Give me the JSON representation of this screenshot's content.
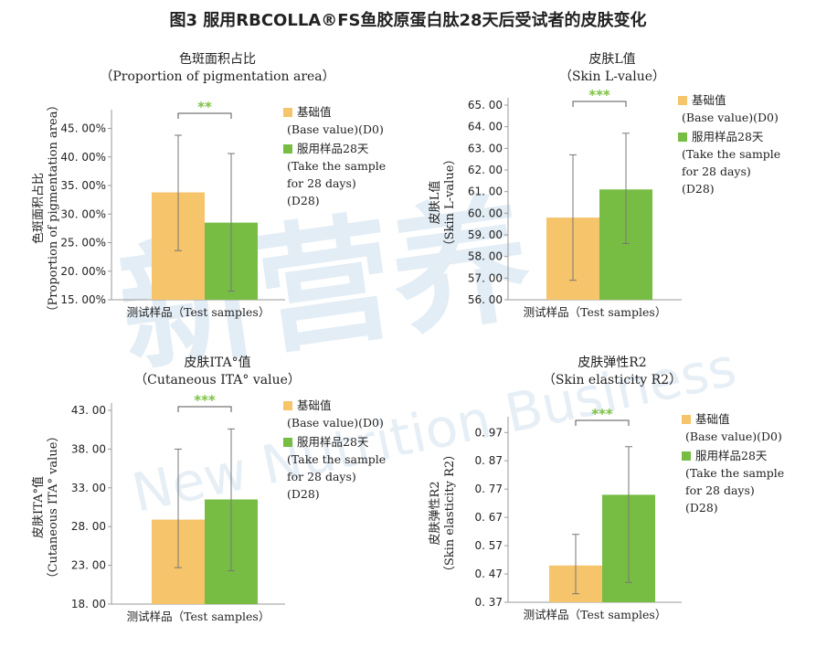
{
  "title": "图3 服用RBCOLLA®FS鱼胶原蛋白肽28天后受试者的皮肤变化",
  "watermark": {
    "cn": "新营养",
    "en": "New Nutrition Business",
    "color": "#dfeaf3"
  },
  "colors": {
    "base": "#f5c46b",
    "d28": "#77bd43",
    "err": "#777777",
    "sig": "#7cc242"
  },
  "chart_data": [
    {
      "type": "bar",
      "title": "色斑面积占比",
      "subtitle": "（Proportion of pigmentation area）",
      "ylabel_cn": "色斑面积占比",
      "ylabel_en": "（Proportion of pigmentation area）",
      "xlabel": "测试样品（Test samples）",
      "ylim": [
        15,
        47
      ],
      "ticks": [
        15,
        20,
        25,
        30,
        35,
        40,
        45
      ],
      "tick_labels": [
        "15. 00%",
        "20. 00%",
        "25. 00%",
        "30. 00%",
        "35. 00%",
        "40. 00%",
        "45. 00%"
      ],
      "series": [
        {
          "name": "基础值 (Base value)(D0)",
          "value": 33.8,
          "err_low": 23.6,
          "err_high": 43.8
        },
        {
          "name": "服用样品28天 (Take the sample for 28 days)(D28)",
          "value": 28.5,
          "err_low": 16.5,
          "err_high": 40.6
        }
      ],
      "significance": "**",
      "legend": [
        {
          "lines": [
            "基础值",
            "(Base value)(D0)"
          ]
        },
        {
          "lines": [
            "服用样品28天",
            "(Take the sample",
            "for 28 days)",
            "(D28)"
          ]
        }
      ]
    },
    {
      "type": "bar",
      "title": "皮肤L值",
      "subtitle": "（Skin L-value）",
      "ylabel_cn": "皮肤L值",
      "ylabel_en": "（Skin L-value）",
      "xlabel": "测试样品（Test samples）",
      "ylim": [
        56,
        65
      ],
      "ticks": [
        56,
        57,
        58,
        59,
        60,
        61,
        62,
        63,
        64,
        65
      ],
      "tick_labels": [
        "56. 00",
        "57. 00",
        "58. 00",
        "59. 00",
        "60. 00",
        "61. 00",
        "62. 00",
        "63. 00",
        "64. 00",
        "65. 00"
      ],
      "series": [
        {
          "name": "基础值 (Base value)(D0)",
          "value": 59.8,
          "err_low": 56.9,
          "err_high": 62.7
        },
        {
          "name": "服用样品28天 (Take the sample for 28 days)(D28)",
          "value": 61.1,
          "err_low": 58.6,
          "err_high": 63.7
        }
      ],
      "significance": "***",
      "legend": [
        {
          "lines": [
            "基础值",
            "(Base value)(D0)"
          ]
        },
        {
          "lines": [
            "服用样品28天",
            "(Take the sample",
            "for 28 days)",
            "(D28)"
          ]
        }
      ]
    },
    {
      "type": "bar",
      "title": "皮肤ITA°值",
      "subtitle": "（Cutaneous ITA° value）",
      "ylabel_cn": "皮肤ITA°值",
      "ylabel_en": "（Cutaneous ITA° value）",
      "xlabel": "测试样品（Test samples）",
      "ylim": [
        18,
        43
      ],
      "ticks": [
        18,
        23,
        28,
        33,
        38,
        43
      ],
      "tick_labels": [
        "18. 00",
        "23. 00",
        "28. 00",
        "33. 00",
        "38. 00",
        "43. 00"
      ],
      "series": [
        {
          "name": "基础值 (Base value)(D0)",
          "value": 28.9,
          "err_low": 22.7,
          "err_high": 38.0
        },
        {
          "name": "服用样品28天 (Take the sample for 28 days)(D28)",
          "value": 31.5,
          "err_low": 22.3,
          "err_high": 40.6
        }
      ],
      "significance": "***",
      "legend": [
        {
          "lines": [
            "基础值",
            "(Base value)(D0)"
          ]
        },
        {
          "lines": [
            "服用样品28天",
            "(Take the sample",
            "for 28 days)",
            "(D28)"
          ]
        }
      ]
    },
    {
      "type": "bar",
      "title": "皮肤弹性R2",
      "subtitle": "（Skin elasticity R2）",
      "ylabel_cn": "皮肤弹性R2",
      "ylabel_en": "（Skin elasticity R2）",
      "xlabel": "测试样品（Test samples）",
      "ylim": [
        0.37,
        1.0
      ],
      "ticks": [
        0.37,
        0.47,
        0.57,
        0.67,
        0.77,
        0.87,
        0.97
      ],
      "tick_labels": [
        "0. 37",
        "0. 47",
        "0. 57",
        "0. 67",
        "0. 77",
        "0. 87",
        "0. 97"
      ],
      "series": [
        {
          "name": "基础值 (Base value)(D0)",
          "value": 0.5,
          "err_low": 0.4,
          "err_high": 0.61
        },
        {
          "name": "服用样品28天 (Take the sample for 28 days)(D28)",
          "value": 0.75,
          "err_low": 0.44,
          "err_high": 0.92
        }
      ],
      "significance": "***",
      "legend": [
        {
          "lines": [
            "基础值",
            "(Base value)(D0)"
          ]
        },
        {
          "lines": [
            "服用样品28天",
            "(Take the sample",
            "for 28 days)",
            "(D28)"
          ]
        }
      ]
    }
  ]
}
